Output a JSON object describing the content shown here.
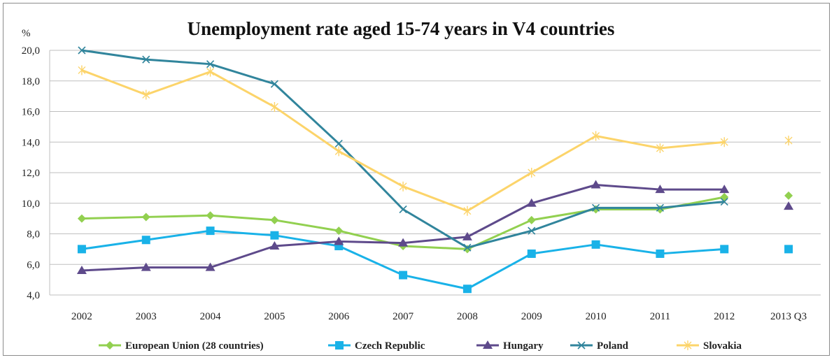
{
  "chart_data": {
    "type": "line",
    "title": "Unemployment rate aged 15-74 years in V4 countries",
    "ylabel": "%",
    "xlabel": "",
    "categories": [
      "2002",
      "2003",
      "2004",
      "2005",
      "2006",
      "2007",
      "2008",
      "2009",
      "2010",
      "2011",
      "2012",
      "2013 Q3"
    ],
    "ylim": [
      4,
      20
    ],
    "yticks": [
      "4,0",
      "6,0",
      "8,0",
      "10,0",
      "12,0",
      "14,0",
      "16,0",
      "18,0",
      "20,0"
    ],
    "grid": true,
    "legend_position": "bottom",
    "series": [
      {
        "name": "European Union (28 countries)",
        "color": "#92d050",
        "marker": "diamond",
        "values": [
          9.0,
          9.1,
          9.2,
          8.9,
          8.2,
          7.2,
          7.0,
          8.9,
          9.6,
          9.6,
          10.4,
          10.5
        ]
      },
      {
        "name": "Czech Republic",
        "color": "#19b2e8",
        "marker": "square",
        "values": [
          7.0,
          7.6,
          8.2,
          7.9,
          7.2,
          5.3,
          4.4,
          6.7,
          7.3,
          6.7,
          7.0,
          7.0
        ]
      },
      {
        "name": "Hungary",
        "color": "#5e4a8b",
        "marker": "triangle",
        "values": [
          5.6,
          5.8,
          5.8,
          7.2,
          7.5,
          7.4,
          7.8,
          10.0,
          11.2,
          10.9,
          10.9,
          9.8
        ]
      },
      {
        "name": "Poland",
        "color": "#31859c",
        "marker": "x",
        "values": [
          20.0,
          19.4,
          19.1,
          17.8,
          13.9,
          9.6,
          7.1,
          8.2,
          9.7,
          9.7,
          10.1,
          null
        ]
      },
      {
        "name": "Slovakia",
        "color": "#fcd46a",
        "marker": "star",
        "values": [
          18.7,
          17.1,
          18.6,
          16.3,
          13.4,
          11.1,
          9.5,
          12.0,
          14.4,
          13.6,
          14.0,
          14.1
        ]
      }
    ]
  }
}
